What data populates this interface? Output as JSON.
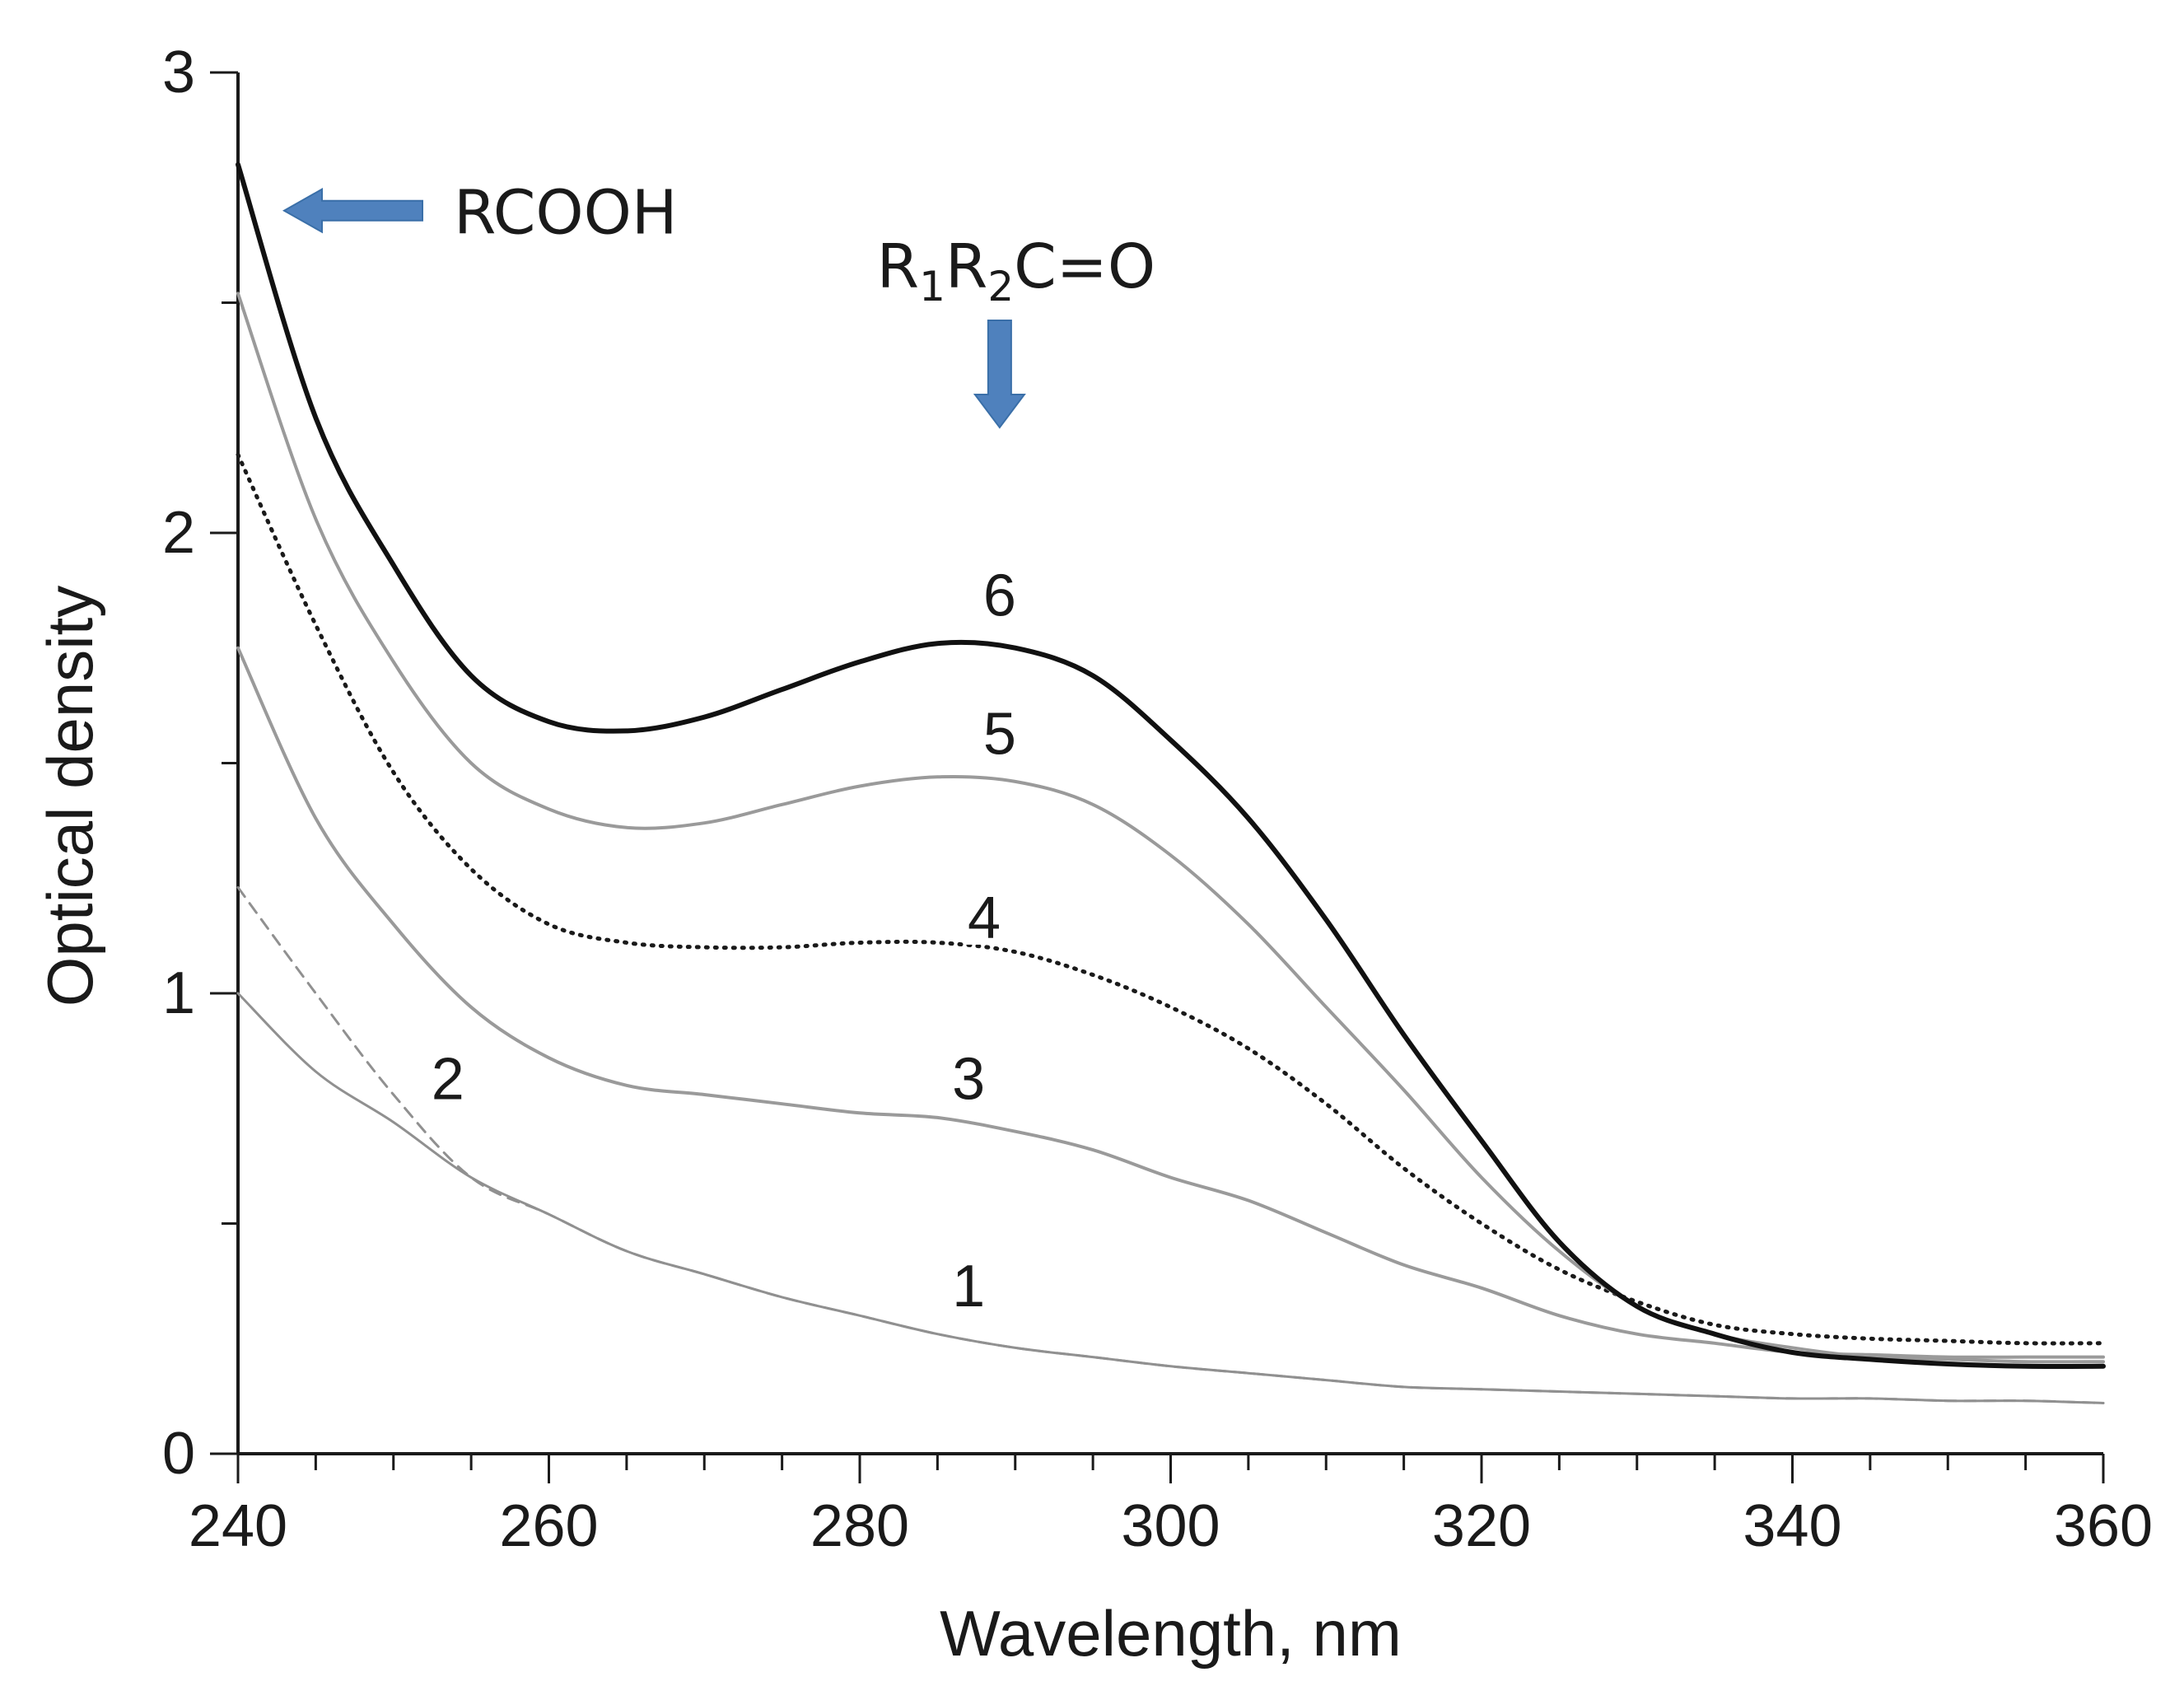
{
  "chart_data": {
    "type": "line",
    "title": "",
    "xlabel": "Wavelength,  nm",
    "ylabel": "Optical density",
    "xlim": [
      240,
      360
    ],
    "ylim": [
      0,
      3
    ],
    "xticks": [
      240,
      260,
      280,
      300,
      320,
      340,
      360
    ],
    "xtick_labels": [
      "240",
      "260",
      "280",
      "300",
      "320",
      "340",
      "360"
    ],
    "yticks": [
      0,
      1,
      2,
      3
    ],
    "ytick_labels": [
      "0",
      "1",
      "2",
      "3"
    ],
    "x": [
      240,
      245,
      250,
      255,
      260,
      265,
      270,
      275,
      280,
      285,
      290,
      295,
      300,
      305,
      310,
      315,
      320,
      325,
      330,
      335,
      340,
      345,
      350,
      355,
      360
    ],
    "series": [
      {
        "name": "1",
        "style": "solid",
        "color": "#909090",
        "width": 3,
        "values": [
          1.0,
          0.83,
          0.72,
          0.6,
          0.52,
          0.44,
          0.39,
          0.34,
          0.3,
          0.26,
          0.23,
          0.21,
          0.19,
          0.175,
          0.16,
          0.145,
          0.14,
          0.135,
          0.13,
          0.125,
          0.12,
          0.12,
          0.115,
          0.115,
          0.11
        ]
      },
      {
        "name": "2",
        "style": "dashed",
        "color": "#909090",
        "width": 3,
        "values": [
          1.23,
          1.0,
          0.78,
          0.6,
          0.52,
          0.44,
          0.39,
          0.34,
          0.3,
          0.26,
          0.23,
          0.21,
          0.19,
          0.175,
          0.16,
          0.145,
          0.14,
          0.135,
          0.13,
          0.125,
          0.12,
          0.12,
          0.115,
          0.115,
          0.11
        ]
      },
      {
        "name": "3",
        "style": "solid",
        "color": "#9a9a9a",
        "width": 4,
        "values": [
          1.75,
          1.38,
          1.15,
          0.97,
          0.86,
          0.8,
          0.78,
          0.76,
          0.74,
          0.73,
          0.7,
          0.66,
          0.6,
          0.55,
          0.48,
          0.41,
          0.36,
          0.3,
          0.26,
          0.24,
          0.22,
          0.215,
          0.21,
          0.21,
          0.21
        ]
      },
      {
        "name": "4",
        "style": "dotted",
        "color": "#1a1a1a",
        "width": 5,
        "values": [
          2.17,
          1.8,
          1.48,
          1.27,
          1.15,
          1.11,
          1.1,
          1.1,
          1.11,
          1.11,
          1.09,
          1.04,
          0.97,
          0.88,
          0.76,
          0.62,
          0.5,
          0.4,
          0.33,
          0.28,
          0.26,
          0.25,
          0.245,
          0.24,
          0.24
        ]
      },
      {
        "name": "5",
        "style": "solid",
        "color": "#9a9a9a",
        "width": 4,
        "values": [
          2.52,
          2.03,
          1.72,
          1.5,
          1.4,
          1.36,
          1.37,
          1.41,
          1.45,
          1.47,
          1.46,
          1.41,
          1.3,
          1.15,
          0.97,
          0.79,
          0.6,
          0.44,
          0.32,
          0.26,
          0.23,
          0.21,
          0.205,
          0.2,
          0.2
        ]
      },
      {
        "name": "6",
        "style": "solid",
        "color": "#111111",
        "width": 6,
        "values": [
          2.8,
          2.25,
          1.93,
          1.69,
          1.59,
          1.57,
          1.6,
          1.66,
          1.72,
          1.76,
          1.75,
          1.69,
          1.55,
          1.38,
          1.16,
          0.91,
          0.68,
          0.46,
          0.32,
          0.26,
          0.22,
          0.205,
          0.195,
          0.19,
          0.19
        ]
      }
    ],
    "curve_labels": [
      {
        "text": "1",
        "x": 287,
        "y": 0.32
      },
      {
        "text": "2",
        "x": 253.5,
        "y": 0.77
      },
      {
        "text": "3",
        "x": 287,
        "y": 0.77
      },
      {
        "text": "4",
        "x": 288,
        "y": 1.12
      },
      {
        "text": "5",
        "x": 289,
        "y": 1.52
      },
      {
        "text": "6",
        "x": 289,
        "y": 1.82
      }
    ],
    "annotations": [
      {
        "text": "RCOOH",
        "arrow": "left",
        "x": 253,
        "y": 2.7
      },
      {
        "text_parts": [
          "R",
          "1",
          "R",
          "2",
          "C=O"
        ],
        "arrow": "down",
        "x": 289,
        "y": 2.39
      }
    ],
    "colors": {
      "arrow": "#4f81bd",
      "arrow_edge": "#3a6fa8",
      "axis": "#1a1a1a"
    }
  }
}
